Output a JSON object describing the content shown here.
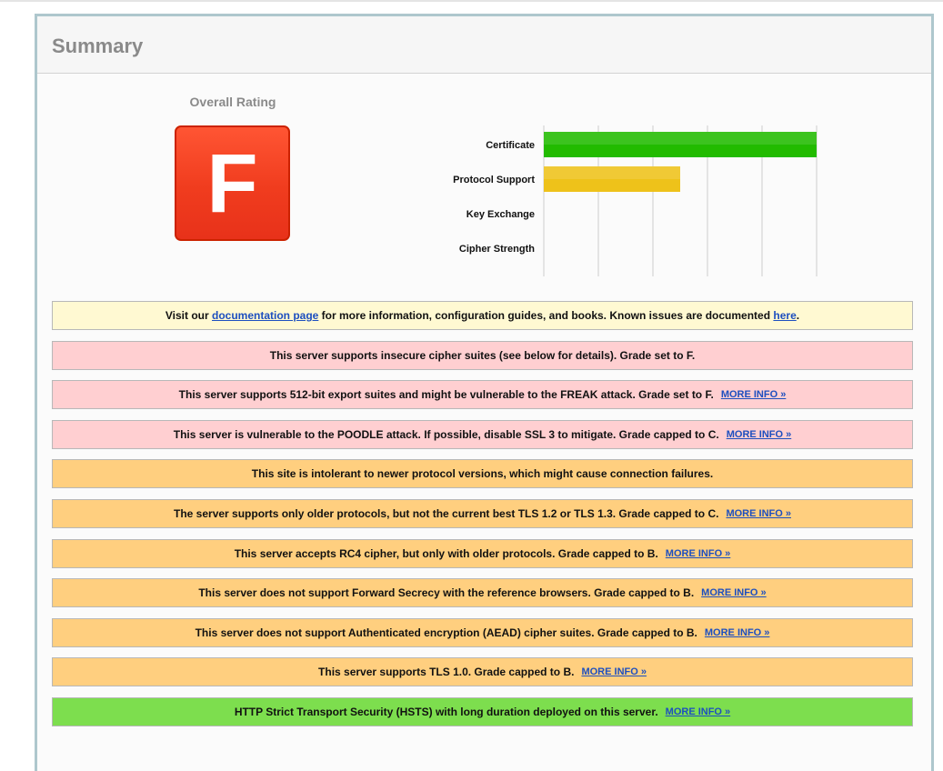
{
  "panel": {
    "title": "Summary"
  },
  "rating": {
    "label": "Overall Rating",
    "grade": "F"
  },
  "chart_data": {
    "type": "bar",
    "orientation": "horizontal",
    "categories": [
      "Certificate",
      "Protocol Support",
      "Key Exchange",
      "Cipher Strength"
    ],
    "values": [
      100,
      50,
      0,
      0
    ],
    "colors": [
      "#22bb00",
      "#eec21a",
      "#eec21a",
      "#eec21a"
    ],
    "xlim": [
      0,
      100
    ],
    "ticks": [
      0,
      20,
      40,
      60,
      80,
      100
    ],
    "grid": true
  },
  "notices": [
    {
      "color": "yellow",
      "parts": [
        "Visit our ",
        "documentation page",
        " for more information, configuration guides, and books. Known issues are documented ",
        "here",
        "."
      ],
      "links": [
        1,
        3
      ]
    },
    {
      "color": "pink",
      "text": "This server supports insecure cipher suites (see below for details). Grade set to F.",
      "more": ""
    },
    {
      "color": "pink",
      "text": "This server supports 512-bit export suites and might be vulnerable to the FREAK attack. Grade set to F.",
      "more": "MORE INFO »"
    },
    {
      "color": "pink",
      "text": "This server is vulnerable to the POODLE attack. If possible, disable SSL 3 to mitigate. Grade capped to C.",
      "more": "MORE INFO »"
    },
    {
      "color": "orange",
      "text": "This site is intolerant to newer protocol versions, which might cause connection failures.",
      "more": ""
    },
    {
      "color": "orange",
      "text": "The server supports only older protocols, but not the current best TLS 1.2 or TLS 1.3. Grade capped to C.",
      "more": "MORE INFO »"
    },
    {
      "color": "orange",
      "text": "This server accepts RC4 cipher, but only with older protocols. Grade capped to B.",
      "more": "MORE INFO »"
    },
    {
      "color": "orange",
      "text": "This server does not support Forward Secrecy with the reference browsers. Grade capped to B.",
      "more": "MORE INFO »"
    },
    {
      "color": "orange",
      "text": "This server does not support Authenticated encryption (AEAD) cipher suites. Grade capped to B.",
      "more": "MORE INFO »"
    },
    {
      "color": "orange",
      "text": "This server supports TLS 1.0. Grade capped to B.",
      "more": "MORE INFO »"
    },
    {
      "color": "green",
      "text": "HTTP Strict Transport Security (HSTS) with long duration deployed on this server.",
      "more": "MORE INFO »"
    }
  ]
}
